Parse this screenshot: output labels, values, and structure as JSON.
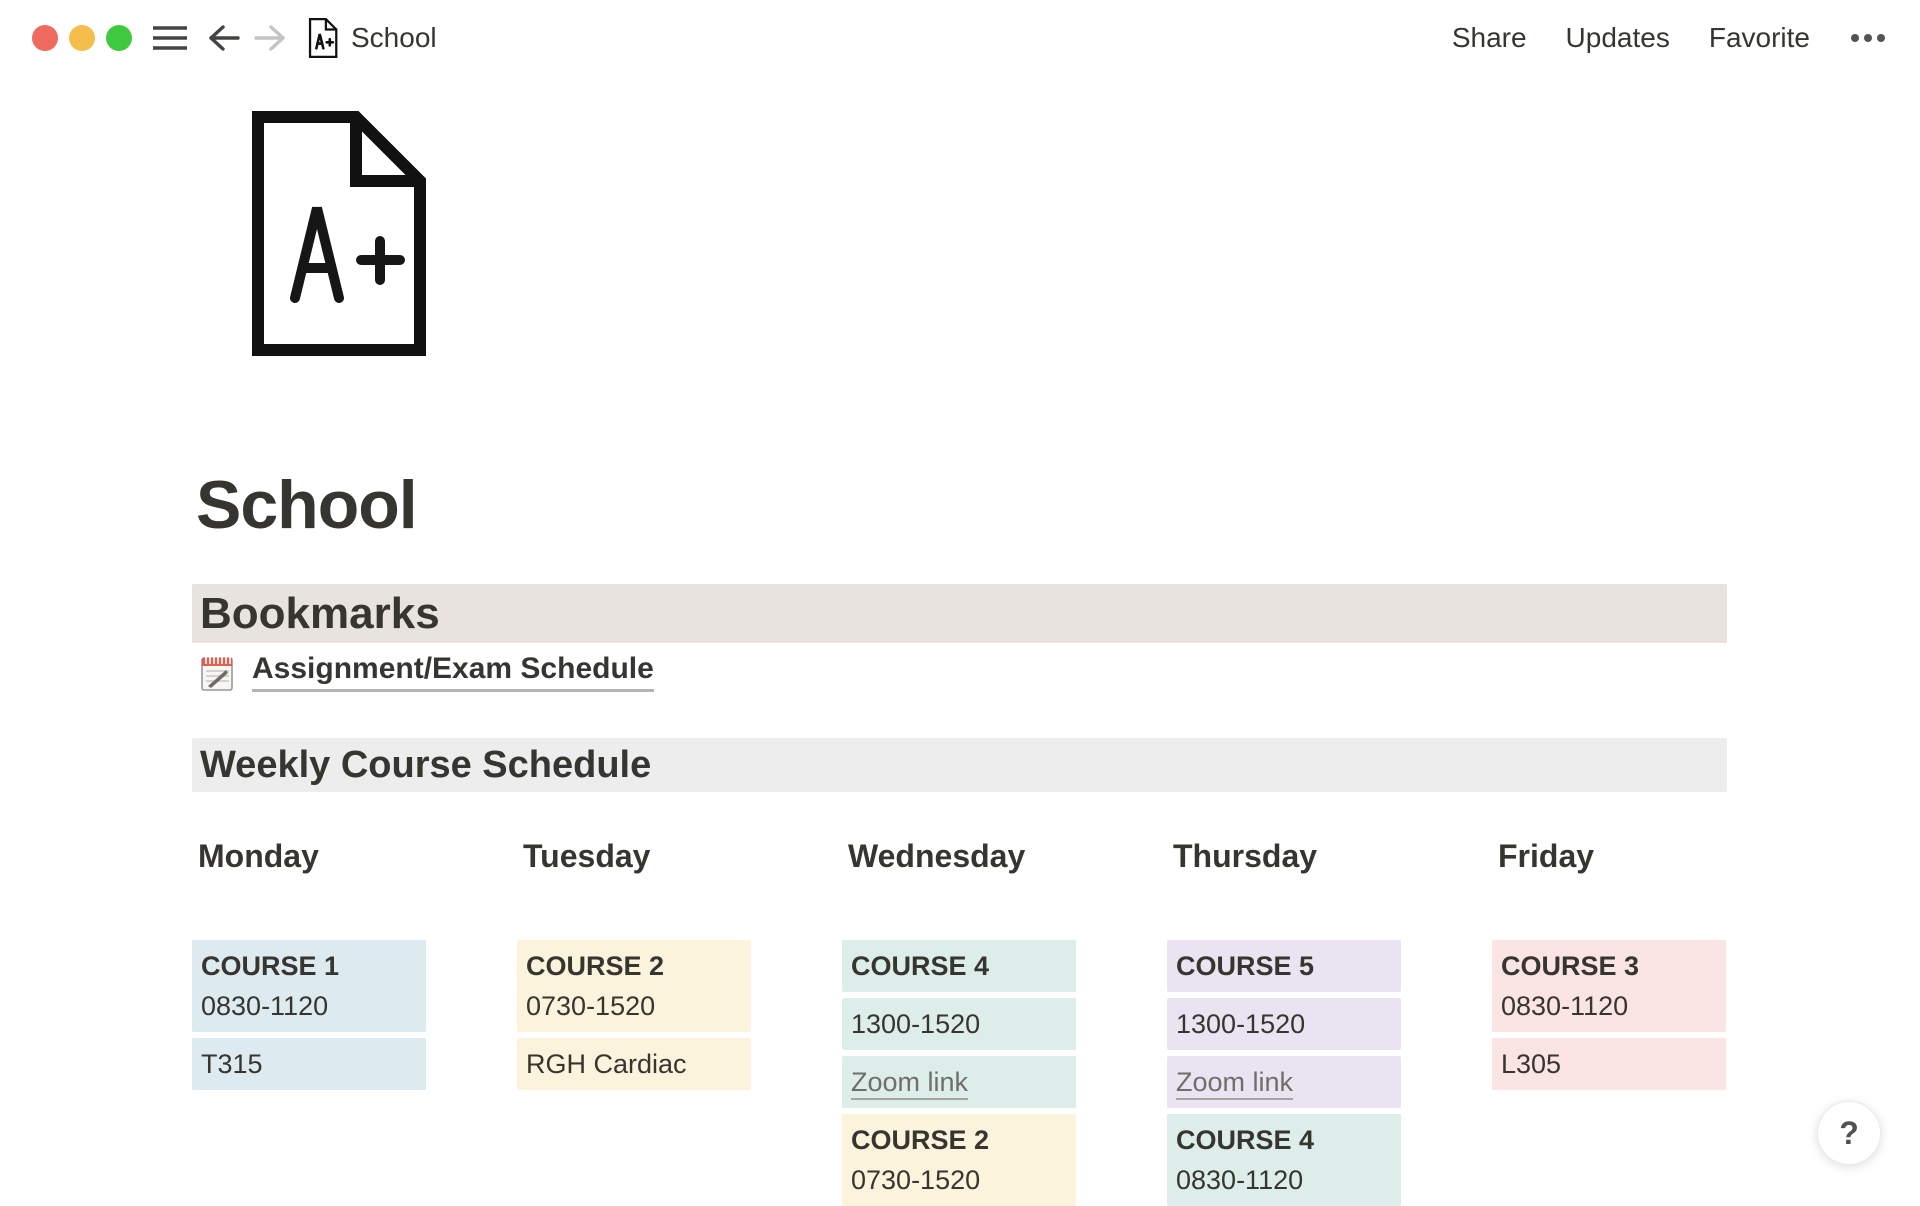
{
  "window": {
    "controls": [
      "close",
      "minimize",
      "zoom"
    ],
    "breadcrumb": "School",
    "actions": {
      "share": "Share",
      "updates": "Updates",
      "favorite": "Favorite"
    }
  },
  "page": {
    "icon_text": "A+",
    "title": "School"
  },
  "bookmarks": {
    "heading": "Bookmarks",
    "link_label": "Assignment/Exam Schedule",
    "link_icon": "calendar-icon"
  },
  "schedule": {
    "heading": "Weekly Course Schedule",
    "days": [
      {
        "label": "Monday",
        "blocks": [
          {
            "bg": "#ddebf1",
            "lines": [
              {
                "text": "COURSE 1",
                "bold": true
              },
              {
                "text": "0830-1120"
              }
            ]
          },
          {
            "bg": "#ddebf1",
            "lines": [
              {
                "text": "T315"
              }
            ]
          }
        ]
      },
      {
        "label": "Tuesday",
        "blocks": [
          {
            "bg": "#fbf3db",
            "lines": [
              {
                "text": "COURSE 2",
                "bold": true
              },
              {
                "text": "0730-1520"
              }
            ]
          },
          {
            "bg": "#fbf3db",
            "lines": [
              {
                "text": "RGH Cardiac"
              }
            ]
          }
        ]
      },
      {
        "label": "Wednesday",
        "blocks": [
          {
            "bg": "#ddedea",
            "lines": [
              {
                "text": "COURSE 4",
                "bold": true
              }
            ]
          },
          {
            "bg": "#ddedea",
            "lines": [
              {
                "text": "1300-1520"
              }
            ]
          },
          {
            "bg": "#ddedea",
            "lines": [
              {
                "text": "Zoom link",
                "link": true
              }
            ]
          },
          {
            "bg": "#fbf3db",
            "lines": [
              {
                "text": "COURSE 2",
                "bold": true
              },
              {
                "text": "0730-1520"
              }
            ]
          }
        ]
      },
      {
        "label": "Thursday",
        "blocks": [
          {
            "bg": "#eae4f2",
            "lines": [
              {
                "text": "COURSE 5",
                "bold": true
              }
            ]
          },
          {
            "bg": "#eae4f2",
            "lines": [
              {
                "text": "1300-1520"
              }
            ]
          },
          {
            "bg": "#eae4f2",
            "lines": [
              {
                "text": "Zoom link",
                "link": true
              }
            ]
          },
          {
            "bg": "#ddedea",
            "lines": [
              {
                "text": "COURSE 4",
                "bold": true
              },
              {
                "text": "0830-1120"
              }
            ]
          }
        ]
      },
      {
        "label": "Friday",
        "blocks": [
          {
            "bg": "#fbe4e4",
            "lines": [
              {
                "text": "COURSE 3",
                "bold": true
              },
              {
                "text": "0830-1120"
              }
            ]
          },
          {
            "bg": "#fbe4e4",
            "lines": [
              {
                "text": "L305"
              }
            ]
          }
        ]
      }
    ]
  },
  "help": {
    "label": "?"
  },
  "colors": {
    "text": "#37352f",
    "bookmarks_bar_bg": "#e8e3de",
    "weekly_bar_bg": "#ecedec",
    "traffic_red": "#ee6a5e",
    "traffic_yellow": "#f5bd4c",
    "traffic_green": "#3ec940",
    "blue_bg": "#ddebf1",
    "yellow_bg": "#fbf3db",
    "teal_bg": "#ddedea",
    "purple_bg": "#eae4f2",
    "red_bg": "#fbe4e4"
  }
}
